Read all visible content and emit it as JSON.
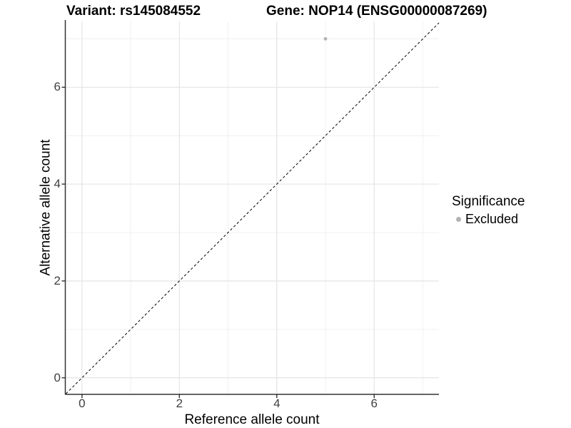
{
  "chart_data": {
    "type": "scatter",
    "titles": {
      "left": "Variant: rs145084552",
      "right": "Gene: NOP14 (ENSG00000087269)"
    },
    "xlabel": "Reference allele count",
    "ylabel": "Alternative allele count",
    "xlim": [
      -0.35,
      7.33
    ],
    "ylim": [
      -0.33,
      7.36
    ],
    "x_ticks": [
      0,
      2,
      4,
      6
    ],
    "y_ticks": [
      0,
      2,
      4,
      6
    ],
    "minor_gridlines": [
      1,
      3,
      5,
      7
    ],
    "grid": "major+minor",
    "points": [
      {
        "x": 5,
        "y": 7,
        "series": "Excluded"
      }
    ],
    "reference_line": {
      "slope": 1,
      "intercept": 0,
      "style": "dashed"
    },
    "legend": {
      "title": "Significance",
      "position": "right",
      "items": [
        {
          "label": "Excluded",
          "color": "#b3b3b3"
        }
      ]
    },
    "colors": {
      "point": "#b3b3b3",
      "axis": "#333333",
      "grid_major": "#e4e4e4",
      "grid_minor": "#f0f0f0",
      "reference_line": "#000000",
      "tick_label": "#404040",
      "title": "#000000"
    }
  }
}
